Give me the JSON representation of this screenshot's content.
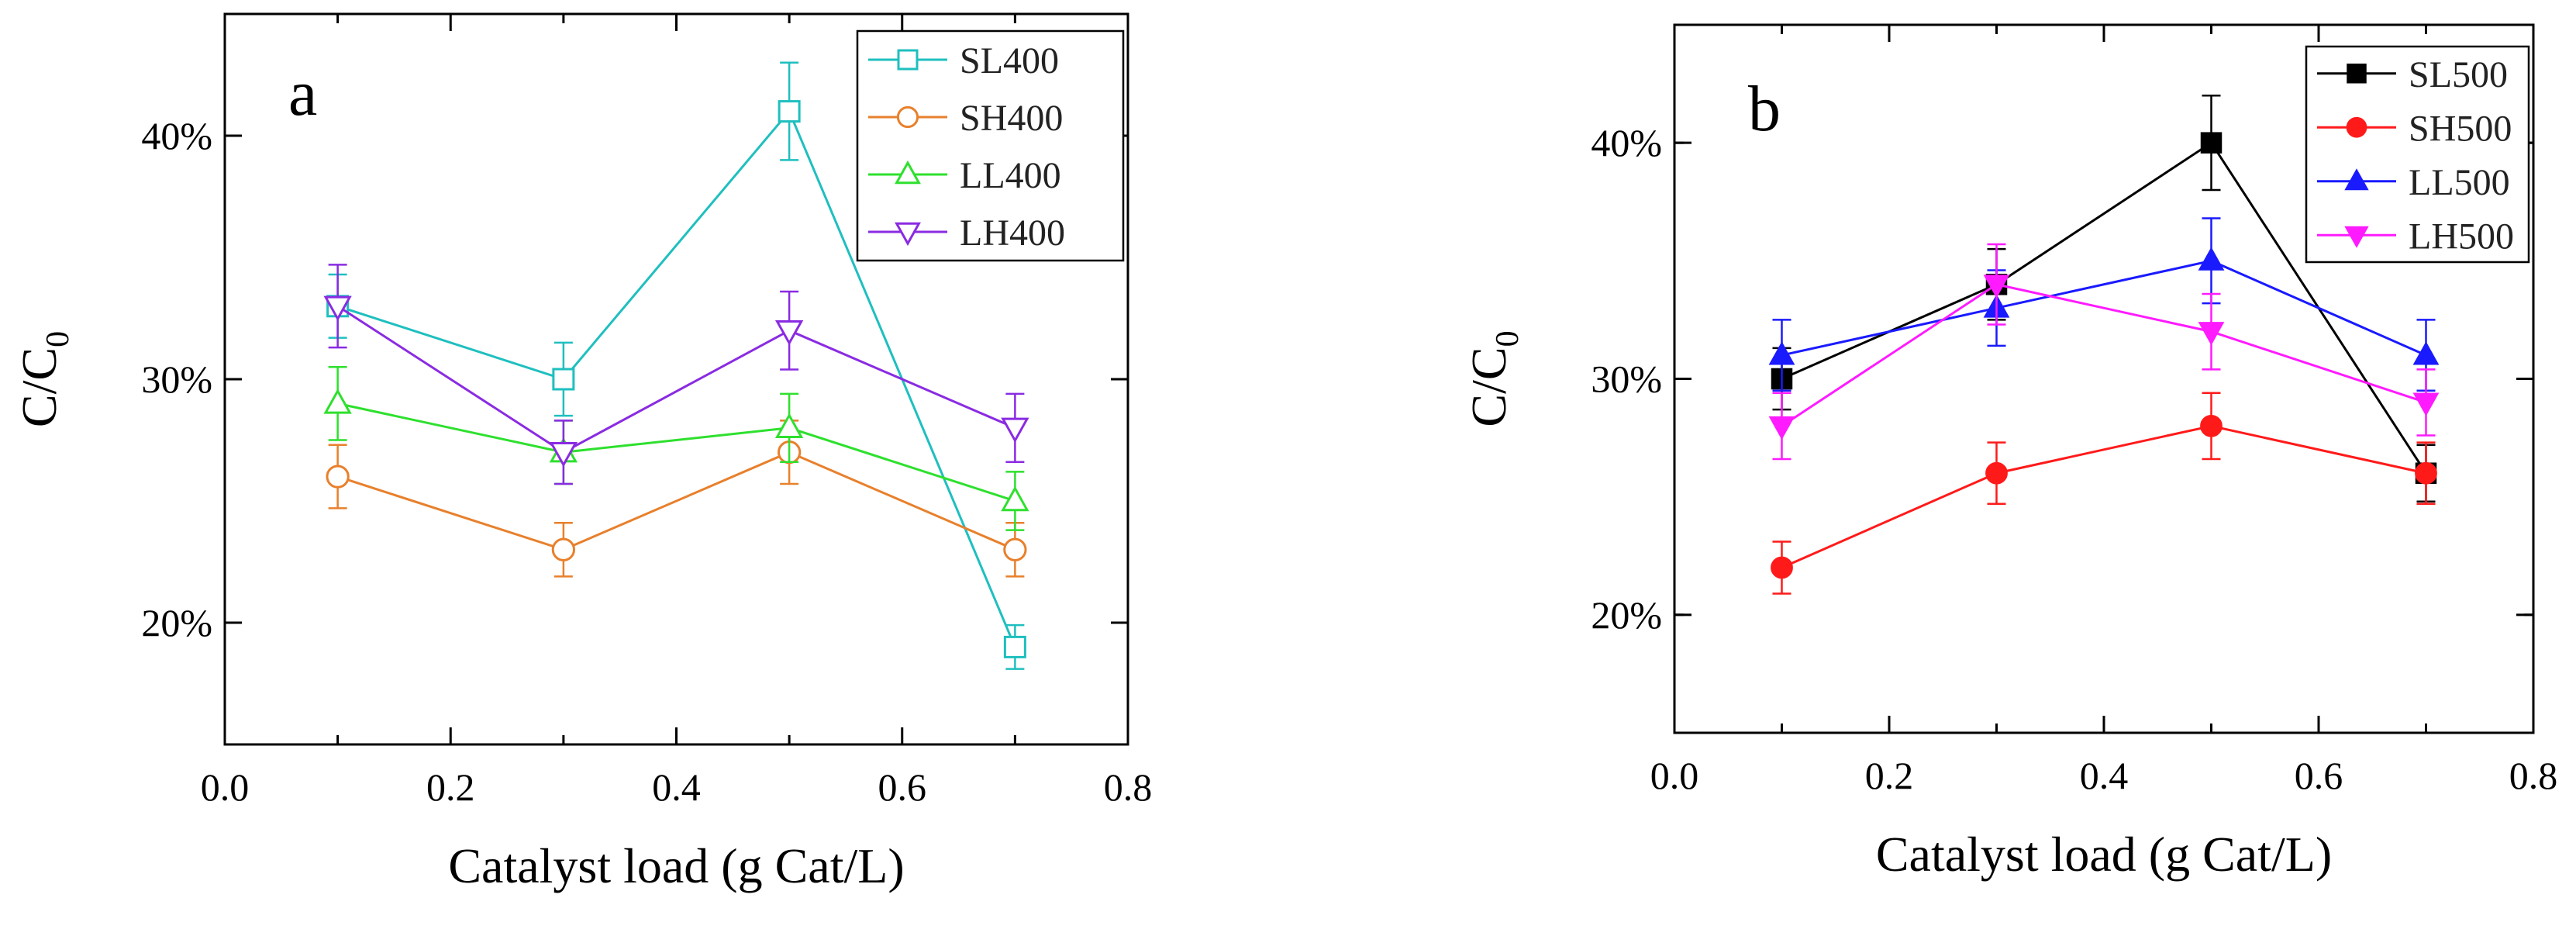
{
  "chart_data": [
    {
      "type": "line",
      "panel_label": "a",
      "xlabel": "Catalyst load (g Cat/L)",
      "ylabel_main": "C/C",
      "ylabel_sub": "0",
      "xlim": [
        0.0,
        0.8
      ],
      "ylim": [
        15,
        45
      ],
      "xticks": [
        0.0,
        0.2,
        0.4,
        0.6,
        0.8
      ],
      "xtick_labels": [
        "0.0",
        "0.2",
        "0.4",
        "0.6",
        "0.8"
      ],
      "yticks": [
        20,
        30,
        40
      ],
      "ytick_labels": [
        "20%",
        "30%",
        "40%"
      ],
      "legend_position": "top-right",
      "series": [
        {
          "name": "SL400",
          "color": "#1fbfbf",
          "marker": "square-open",
          "x": [
            0.1,
            0.3,
            0.5,
            0.7
          ],
          "y": [
            33,
            30,
            41,
            19
          ],
          "err": [
            1.3,
            1.5,
            2.0,
            0.9
          ]
        },
        {
          "name": "SH400",
          "color": "#e8802c",
          "marker": "circle-open",
          "x": [
            0.1,
            0.3,
            0.5,
            0.7
          ],
          "y": [
            26,
            23,
            27,
            23
          ],
          "err": [
            1.3,
            1.1,
            1.3,
            1.1
          ]
        },
        {
          "name": "LL400",
          "color": "#2ee02e",
          "marker": "triangle-up-open",
          "x": [
            0.1,
            0.3,
            0.5,
            0.7
          ],
          "y": [
            29,
            27,
            28,
            25
          ],
          "err": [
            1.5,
            1.3,
            1.4,
            1.2
          ]
        },
        {
          "name": "LH400",
          "color": "#8a2be2",
          "marker": "triangle-down-open",
          "x": [
            0.1,
            0.3,
            0.5,
            0.7
          ],
          "y": [
            33,
            27,
            32,
            28
          ],
          "err": [
            1.7,
            1.3,
            1.6,
            1.4
          ]
        }
      ]
    },
    {
      "type": "line",
      "panel_label": "b",
      "xlabel": "Catalyst load (g Cat/L)",
      "ylabel_main": "C/C",
      "ylabel_sub": "0",
      "xlim": [
        0.0,
        0.8
      ],
      "ylim": [
        15,
        45
      ],
      "xticks": [
        0.0,
        0.2,
        0.4,
        0.6,
        0.8
      ],
      "xtick_labels": [
        "0.0",
        "0.2",
        "0.4",
        "0.6",
        "0.8"
      ],
      "yticks": [
        20,
        30,
        40
      ],
      "ytick_labels": [
        "20%",
        "30%",
        "40%"
      ],
      "legend_position": "top-right",
      "series": [
        {
          "name": "SL500",
          "color": "#000000",
          "marker": "square-filled",
          "x": [
            0.1,
            0.3,
            0.5,
            0.7
          ],
          "y": [
            30,
            34,
            40,
            26
          ],
          "err": [
            1.3,
            1.5,
            2.0,
            1.2
          ]
        },
        {
          "name": "SH500",
          "color": "#ff1a1a",
          "marker": "circle-filled",
          "x": [
            0.1,
            0.3,
            0.5,
            0.7
          ],
          "y": [
            22,
            26,
            28,
            26
          ],
          "err": [
            1.1,
            1.3,
            1.4,
            1.3
          ]
        },
        {
          "name": "LL500",
          "color": "#1a1aff",
          "marker": "triangle-up-filled",
          "x": [
            0.1,
            0.3,
            0.5,
            0.7
          ],
          "y": [
            31,
            33,
            35,
            31
          ],
          "err": [
            1.5,
            1.6,
            1.8,
            1.5
          ]
        },
        {
          "name": "LH500",
          "color": "#ff1aff",
          "marker": "triangle-down-filled",
          "x": [
            0.1,
            0.3,
            0.5,
            0.7
          ],
          "y": [
            28,
            34,
            32,
            29
          ],
          "err": [
            1.4,
            1.7,
            1.6,
            1.4
          ]
        }
      ]
    }
  ]
}
